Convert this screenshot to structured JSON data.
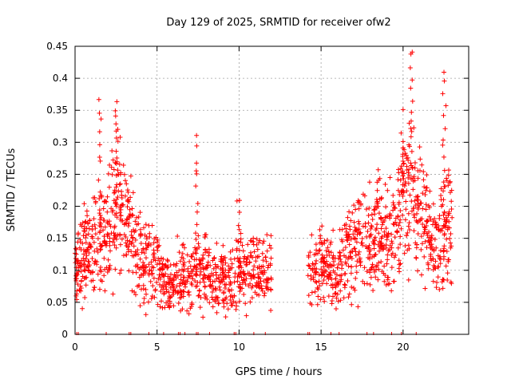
{
  "chart_data": {
    "type": "scatter",
    "title": "Day 129 of 2025, SRMTID for receiver ofw2",
    "xlabel": "GPS time / hours",
    "ylabel": "SRMTID / TECUs",
    "xlim": [
      0,
      24
    ],
    "ylim": [
      0,
      0.45
    ],
    "xticks": [
      0,
      5,
      10,
      15,
      20
    ],
    "yticks": [
      0,
      0.05,
      0.1,
      0.15,
      0.2,
      0.25,
      0.3,
      0.35,
      0.4,
      0.45
    ],
    "ytick_labels": [
      "0",
      "0.05",
      "0.1",
      "0.15",
      "0.2",
      "0.25",
      "0.3",
      "0.35",
      "0.4",
      "0.45"
    ],
    "grid": true,
    "marker": "+",
    "color": "#ff0000",
    "profile": [
      {
        "x": 0.0,
        "y": 0.11
      },
      {
        "x": 0.5,
        "y": 0.12
      },
      {
        "x": 1.0,
        "y": 0.13
      },
      {
        "x": 1.5,
        "y": 0.14
      },
      {
        "x": 2.0,
        "y": 0.17
      },
      {
        "x": 2.5,
        "y": 0.2
      },
      {
        "x": 3.0,
        "y": 0.18
      },
      {
        "x": 3.5,
        "y": 0.15
      },
      {
        "x": 4.0,
        "y": 0.12
      },
      {
        "x": 4.5,
        "y": 0.11
      },
      {
        "x": 5.0,
        "y": 0.11
      },
      {
        "x": 5.5,
        "y": 0.08
      },
      {
        "x": 6.0,
        "y": 0.08
      },
      {
        "x": 6.5,
        "y": 0.09
      },
      {
        "x": 7.0,
        "y": 0.08
      },
      {
        "x": 7.5,
        "y": 0.1
      },
      {
        "x": 8.0,
        "y": 0.1
      },
      {
        "x": 8.5,
        "y": 0.09
      },
      {
        "x": 9.0,
        "y": 0.09
      },
      {
        "x": 9.5,
        "y": 0.08
      },
      {
        "x": 10.0,
        "y": 0.09
      },
      {
        "x": 10.5,
        "y": 0.1
      },
      {
        "x": 11.0,
        "y": 0.1
      },
      {
        "x": 11.5,
        "y": 0.1
      },
      {
        "x": 12.0,
        "y": 0.1
      },
      {
        "x": 14.2,
        "y": 0.09
      },
      {
        "x": 14.5,
        "y": 0.09
      },
      {
        "x": 15.0,
        "y": 0.11
      },
      {
        "x": 15.5,
        "y": 0.1
      },
      {
        "x": 16.0,
        "y": 0.08
      },
      {
        "x": 16.5,
        "y": 0.12
      },
      {
        "x": 17.0,
        "y": 0.14
      },
      {
        "x": 17.5,
        "y": 0.15
      },
      {
        "x": 18.0,
        "y": 0.14
      },
      {
        "x": 18.5,
        "y": 0.17
      },
      {
        "x": 19.0,
        "y": 0.15
      },
      {
        "x": 19.5,
        "y": 0.16
      },
      {
        "x": 20.0,
        "y": 0.22
      },
      {
        "x": 20.5,
        "y": 0.23
      },
      {
        "x": 21.0,
        "y": 0.2
      },
      {
        "x": 21.5,
        "y": 0.16
      },
      {
        "x": 22.0,
        "y": 0.13
      },
      {
        "x": 22.5,
        "y": 0.17
      },
      {
        "x": 23.0,
        "y": 0.16
      }
    ],
    "data_gap": [
      12.0,
      14.2
    ],
    "peaks": [
      {
        "x": 1.5,
        "y": 0.367
      },
      {
        "x": 2.5,
        "y": 0.364
      },
      {
        "x": 7.4,
        "y": 0.306
      },
      {
        "x": 10.0,
        "y": 0.212
      },
      {
        "x": 20.0,
        "y": 0.304
      },
      {
        "x": 20.5,
        "y": 0.45
      },
      {
        "x": 22.5,
        "y": 0.41
      }
    ],
    "zero_markers_x": [
      0.1,
      0.2,
      1.9,
      3.3,
      3.4,
      4.5,
      5.4,
      6.3,
      6.4,
      6.7,
      7.4,
      7.5,
      8.2,
      9.7,
      9.8,
      10.9,
      11.6,
      14.2,
      14.3,
      15.6,
      16.1,
      17.8,
      18.2,
      19.3,
      19.9,
      20.8
    ]
  }
}
